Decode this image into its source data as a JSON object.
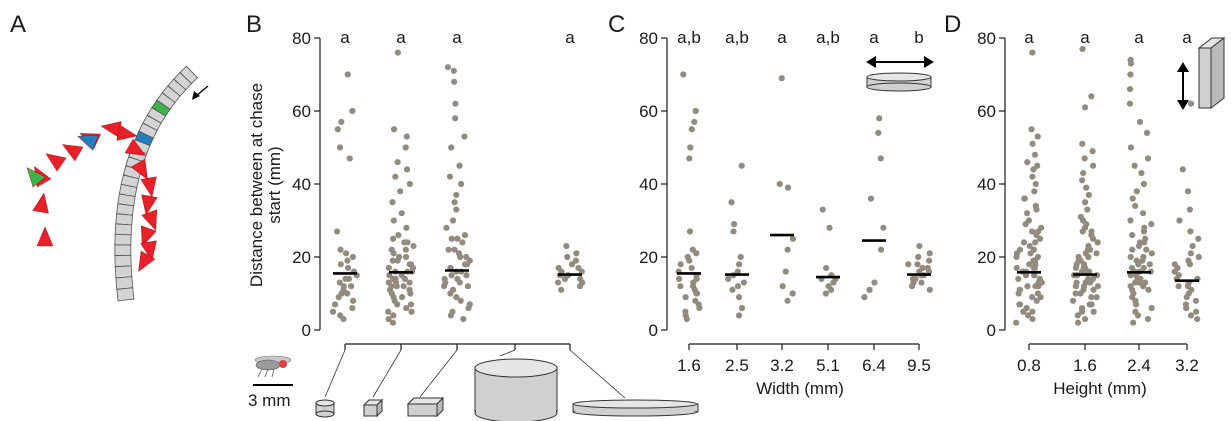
{
  "panels": {
    "A": "A",
    "B": "B",
    "C": "C",
    "D": "D"
  },
  "scale_bar_label": "3 mm",
  "colors": {
    "dots": "#948b80",
    "trail_red": "#e8202a",
    "trail_blue": "#1f7fc1",
    "trail_green": "#3db34a",
    "segment_fill": "#d3d3d3"
  },
  "icons": [
    "fly-icon",
    "cylinder-short-icon",
    "cube-icon",
    "box-icon",
    "cylinder-large-icon",
    "disk-wide-icon",
    "width-arrow-icon",
    "height-arrow-icon"
  ],
  "chart_data": [
    {
      "type": "scatter",
      "panel": "B",
      "title": "",
      "xlabel": "",
      "ylabel": "Distance between at chase start (mm)",
      "ylim": [
        0,
        80
      ],
      "yticks": [
        "0",
        "20",
        "40",
        "60",
        "80"
      ],
      "categories": [
        "small cylinder",
        "cube",
        "box",
        "large cylinder",
        "wide disk"
      ],
      "significance": [
        "a",
        "a",
        "a",
        "",
        "a"
      ],
      "medians": [
        15.5,
        15.8,
        16.3,
        null,
        15.2
      ],
      "series": [
        {
          "values": [
            [
              70,
              60,
              57,
              55,
              50,
              47,
              27,
              22,
              20,
              18,
              17,
              16,
              15,
              14,
              13,
              12,
              11,
              10,
              9,
              8,
              7,
              6,
              5,
              4,
              3,
              21,
              19,
              14,
              12,
              10
            ],
            [
              76,
              55,
              53,
              50,
              46,
              44,
              42,
              40,
              38,
              35,
              32,
              30,
              28,
              26,
              25,
              24,
              23,
              22,
              21,
              20,
              19,
              18,
              17,
              16,
              15,
              14,
              13,
              12,
              11,
              10,
              9,
              8,
              7,
              6,
              5,
              4,
              3,
              2,
              18,
              16,
              15,
              14,
              13,
              12,
              11,
              10,
              17,
              15,
              14,
              13,
              20,
              22,
              24,
              19,
              16,
              12,
              9,
              7,
              5
            ],
            [
              72,
              71,
              68,
              62,
              58,
              53,
              50,
              45,
              42,
              40,
              37,
              35,
              33,
              30,
              28,
              26,
              25,
              24,
              22,
              21,
              20,
              19,
              18,
              17,
              16,
              15,
              14,
              13,
              12,
              11,
              10,
              9,
              8,
              7,
              6,
              5,
              4,
              3,
              18,
              16,
              15,
              14,
              13,
              12,
              20,
              22,
              25,
              17
            ],
            [],
            [
              23,
              21,
              20,
              19,
              18,
              17,
              16,
              16,
              15,
              15,
              14,
              14,
              13,
              13,
              12,
              11,
              18,
              17
            ]
          ]
        }
      ]
    },
    {
      "type": "scatter",
      "panel": "C",
      "title": "",
      "xlabel": "Width (mm)",
      "ylabel": "",
      "ylim": [
        0,
        80
      ],
      "yticks": [
        "0",
        "20",
        "40",
        "60",
        "80"
      ],
      "categories": [
        "1.6",
        "2.5",
        "3.2",
        "5.1",
        "6.4",
        "9.5"
      ],
      "significance": [
        "a,b",
        "a,b",
        "a",
        "a,b",
        "a",
        "b"
      ],
      "medians": [
        15.5,
        15.2,
        26.0,
        14.5,
        24.5,
        15.2
      ],
      "series": [
        {
          "values": [
            [
              70,
              60,
              57,
              55,
              50,
              47,
              27,
              22,
              20,
              18,
              17,
              16,
              15,
              14,
              13,
              12,
              11,
              10,
              9,
              8,
              7,
              6,
              5,
              4,
              3,
              21,
              19,
              14,
              12,
              10
            ],
            [
              45,
              35,
              29,
              27,
              20,
              18,
              16,
              15,
              14,
              13,
              12,
              11,
              9,
              6,
              4
            ],
            [
              69,
              40,
              39,
              25,
              22,
              16,
              12,
              10,
              8
            ],
            [
              33,
              28,
              17,
              15,
              14,
              13,
              12,
              11,
              10,
              14
            ],
            [
              58,
              54,
              47,
              36,
              28,
              22,
              13,
              11,
              9
            ],
            [
              23,
              21,
              20,
              19,
              18,
              17,
              16,
              16,
              15,
              15,
              14,
              14,
              13,
              13,
              12,
              11,
              18,
              17
            ]
          ]
        }
      ]
    },
    {
      "type": "scatter",
      "panel": "D",
      "title": "",
      "xlabel": "Height (mm)",
      "ylabel": "",
      "ylim": [
        0,
        80
      ],
      "yticks": [
        "0",
        "20",
        "40",
        "60",
        "80"
      ],
      "categories": [
        "0.8",
        "1.6",
        "2.4",
        "3.2"
      ],
      "significance": [
        "a",
        "a",
        "a",
        "a"
      ],
      "medians": [
        15.8,
        15.2,
        15.8,
        13.5
      ],
      "series": [
        {
          "values": [
            [
              76,
              55,
              53,
              51,
              48,
              46,
              45,
              44,
              42,
              40,
              38,
              36,
              34,
              32,
              30,
              29,
              28,
              27,
              26,
              25,
              24,
              23,
              22,
              21,
              20,
              19,
              18,
              17,
              16,
              15,
              14,
              13,
              12,
              11,
              10,
              9,
              8,
              7,
              6,
              5,
              4,
              3,
              2,
              18,
              17,
              16,
              15,
              14,
              13,
              12,
              11,
              20,
              22,
              24,
              19,
              16,
              13,
              9,
              7,
              5,
              33,
              36,
              27,
              21,
              17,
              15,
              12,
              10
            ],
            [
              77,
              64,
              61,
              51,
              49,
              47,
              45,
              43,
              41,
              39,
              37,
              35,
              33,
              31,
              30,
              29,
              28,
              27,
              26,
              25,
              24,
              23,
              22,
              21,
              20,
              19,
              18,
              17,
              16,
              15,
              14,
              13,
              12,
              11,
              10,
              9,
              8,
              7,
              6,
              5,
              4,
              3,
              2,
              18,
              17,
              16,
              15,
              14,
              13,
              12,
              11,
              20,
              22,
              24,
              19,
              16,
              13,
              9,
              7,
              5,
              27,
              21,
              17,
              15,
              12,
              10
            ],
            [
              74,
              73,
              70,
              66,
              62,
              57,
              54,
              50,
              47,
              45,
              43,
              40,
              38,
              36,
              34,
              32,
              30,
              29,
              28,
              27,
              26,
              25,
              24,
              23,
              22,
              21,
              20,
              19,
              18,
              17,
              16,
              15,
              14,
              13,
              12,
              11,
              10,
              9,
              8,
              7,
              6,
              5,
              4,
              3,
              2,
              18,
              17,
              16,
              15,
              14,
              13,
              12,
              11,
              20,
              22,
              24,
              19,
              16,
              13
            ],
            [
              62,
              44,
              38,
              33,
              30,
              27,
              25,
              23,
              21,
              20,
              19,
              18,
              17,
              16,
              15,
              14,
              13,
              12,
              11,
              10,
              9,
              8,
              7,
              6,
              5,
              4,
              3,
              14,
              13,
              12,
              16,
              18
            ]
          ]
        }
      ]
    }
  ]
}
